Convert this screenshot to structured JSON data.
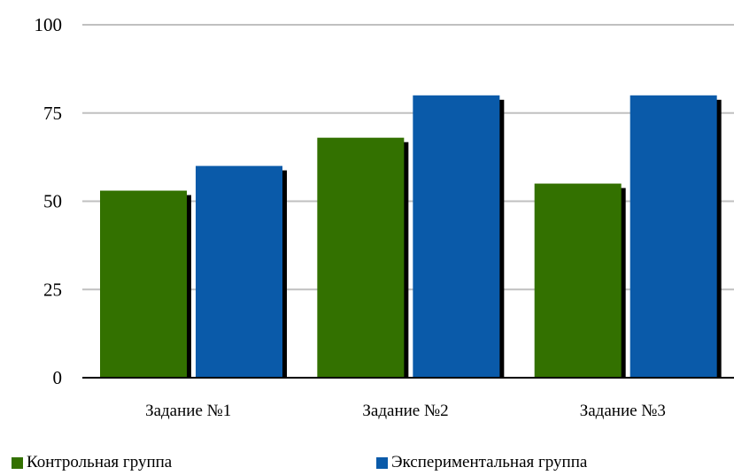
{
  "chart_data": {
    "type": "bar",
    "categories": [
      "Задание №1",
      "Задание №2",
      "Задание №3"
    ],
    "series": [
      {
        "name": "Контрольная группа",
        "values": [
          53,
          68,
          55
        ],
        "color": "#337100"
      },
      {
        "name": "Экспериментальная группа",
        "values": [
          60,
          80,
          80
        ],
        "color": "#0a5aa9"
      }
    ],
    "ylim": [
      0,
      100
    ],
    "yticks": [
      0,
      25,
      50,
      75,
      100
    ],
    "grid": true,
    "legend_position": "bottom",
    "gridline_color": "#c0c0c0",
    "shadow_color": "#000000"
  }
}
